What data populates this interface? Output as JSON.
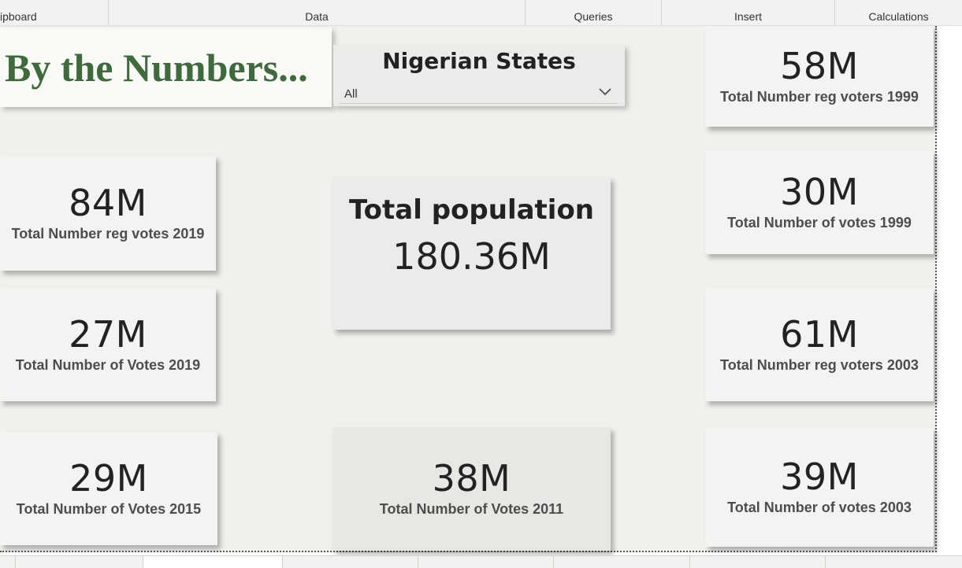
{
  "ribbon": {
    "groups": [
      "ipboard",
      "Data",
      "Queries",
      "Insert",
      "Calculations"
    ]
  },
  "title": "By the Numbers...",
  "slicer": {
    "title": "Nigerian States",
    "selected": "All",
    "icon": "chevron-down-icon"
  },
  "population": {
    "title": "Total population",
    "value": "180.36M"
  },
  "cards": {
    "reg_voters_1999": {
      "value": "58M",
      "label": "Total Number reg voters 1999"
    },
    "votes_1999": {
      "value": "30M",
      "label": "Total Number of votes 1999"
    },
    "reg_voters_2003": {
      "value": "61M",
      "label": "Total Number reg voters 2003"
    },
    "votes_2003": {
      "value": "39M",
      "label": "Total Number of votes 2003"
    },
    "reg_votes_2019": {
      "value": "84M",
      "label": "Total Number reg votes 2019"
    },
    "votes_2019": {
      "value": "27M",
      "label": "Total Number of Votes 2019"
    },
    "votes_2015": {
      "value": "29M",
      "label": "Total Number of Votes 2015"
    },
    "votes_2011": {
      "value": "38M",
      "label": "Total Number of Votes 2011"
    }
  },
  "colors": {
    "title_green": "#3e6a3e",
    "canvas_bg": "#f0f1ed",
    "card_bg": "#f3f4f1"
  }
}
